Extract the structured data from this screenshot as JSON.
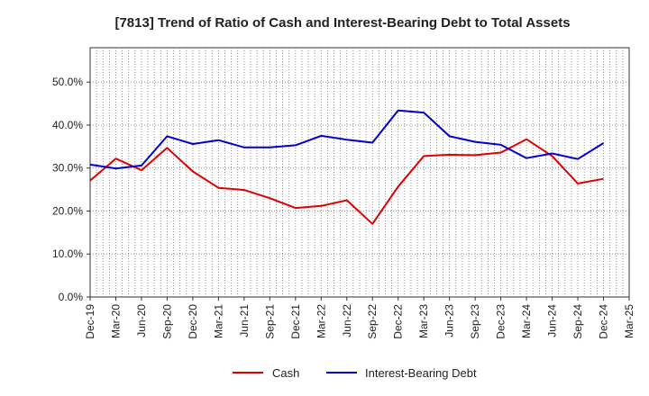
{
  "chart_data": {
    "type": "line",
    "title": "[7813]  Trend of Ratio of Cash and Interest-Bearing Debt to Total Assets",
    "xlabel": "",
    "ylabel": "",
    "categories": [
      "Dec-19",
      "Mar-20",
      "Jun-20",
      "Sep-20",
      "Dec-20",
      "Mar-21",
      "Jun-21",
      "Sep-21",
      "Dec-21",
      "Mar-22",
      "Jun-22",
      "Sep-22",
      "Dec-22",
      "Mar-23",
      "Jun-23",
      "Sep-23",
      "Dec-23",
      "Mar-24",
      "Jun-24",
      "Sep-24",
      "Dec-24",
      "Mar-25"
    ],
    "ylim": [
      0,
      0.5
    ],
    "yticks": [
      0,
      0.1,
      0.2,
      0.3,
      0.4,
      0.5
    ],
    "ytick_labels": [
      "0.0%",
      "10.0%",
      "20.0%",
      "30.0%",
      "40.0%",
      "50.0%"
    ],
    "grid": true,
    "legend_position": "bottom-center",
    "series": [
      {
        "name": "Cash",
        "color": "#e00000",
        "values": [
          0.271,
          0.322,
          0.295,
          0.347,
          0.292,
          0.254,
          0.249,
          0.23,
          0.207,
          0.212,
          0.225,
          0.17,
          0.257,
          0.328,
          0.331,
          0.33,
          0.336,
          0.367,
          0.328,
          0.264,
          0.275,
          null
        ]
      },
      {
        "name": "Interest-Bearing Debt",
        "color": "#0000d0",
        "values": [
          0.308,
          0.299,
          0.306,
          0.374,
          0.356,
          0.365,
          0.348,
          0.348,
          0.353,
          0.375,
          0.366,
          0.359,
          0.434,
          0.429,
          0.374,
          0.361,
          0.354,
          0.323,
          0.334,
          0.321,
          0.358,
          null
        ]
      }
    ]
  }
}
